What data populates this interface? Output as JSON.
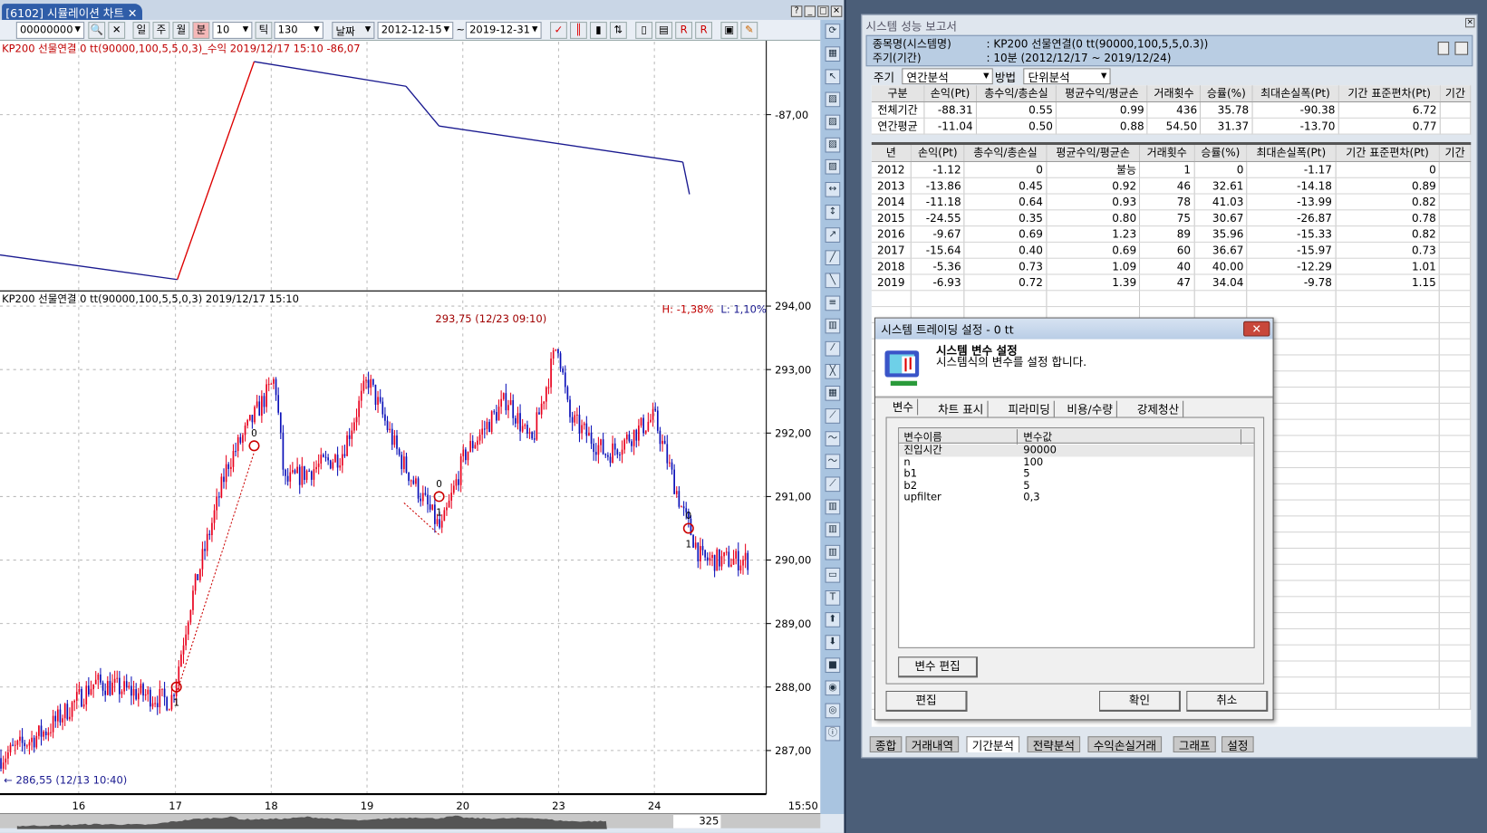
{
  "window": {
    "tab_title": "[6102] 시뮬레이션 차트",
    "close": "✕",
    "help": "?",
    "min": "_",
    "max": "□",
    "x": "✕"
  },
  "toolbar": {
    "code": "00000000",
    "day": "일",
    "week": "주",
    "month": "월",
    "minute": "분",
    "interval": "10",
    "tick": "틱",
    "tick_value": "130",
    "date_mode": "날짜",
    "from": "2012-12-15",
    "tilde": "~",
    "to": "2019-12-31"
  },
  "upper_chart": {
    "legend": "KP200 선물연결  0 tt(90000,100,5,5,0,3)_수익 2019/12/17 15:10 -86,07",
    "axis_label": "-87,00"
  },
  "lower_chart": {
    "legend": "KP200 선물연결  0 tt(90000,100,5,5,0,3)  2019/12/17 15:10",
    "hl_high": "H: -1,38%",
    "hl_low": "L: 1,10%",
    "max_note": "293,75 (12/23 09:10)",
    "min_note": "286,55 (12/13 10:40)",
    "yticks": [
      "294,00",
      "293,00",
      "292,00",
      "291,00",
      "290,00",
      "289,00",
      "288,00",
      "287,00"
    ],
    "xticks": [
      "16",
      "17",
      "18",
      "19",
      "20",
      "23",
      "24"
    ],
    "time_label": "15:50",
    "up_color": "#e8001c",
    "down_color": "#0a10b8",
    "signals": [
      {
        "top": "0",
        "bottom": ""
      },
      {
        "top": "0",
        "bottom": "1"
      },
      {
        "top": "0",
        "bottom": "1"
      },
      {
        "top": "",
        "bottom": "1"
      }
    ]
  },
  "scrollbar": {
    "count": "325"
  },
  "chart_data": {
    "type": "candlestick",
    "price_path": [
      [
        0,
        286.88
      ],
      [
        50,
        287.33
      ],
      [
        100,
        288.07
      ],
      [
        180,
        287.78
      ],
      [
        185,
        288.07
      ],
      [
        200,
        289.27
      ],
      [
        240,
        291.51
      ],
      [
        290,
        292.85
      ],
      [
        300,
        291.21
      ],
      [
        360,
        291.66
      ],
      [
        388,
        292.85
      ],
      [
        420,
        291.66
      ],
      [
        465,
        290.46
      ],
      [
        490,
        291.66
      ],
      [
        535,
        292.55
      ],
      [
        560,
        291.8
      ],
      [
        588,
        293.45
      ],
      [
        600,
        292.25
      ],
      [
        640,
        291.66
      ],
      [
        690,
        292.25
      ],
      [
        720,
        290.76
      ],
      [
        740,
        290.0
      ],
      [
        790,
        290.0
      ]
    ],
    "equity_path": [
      [
        0,
        -87.74
      ],
      [
        187,
        -87.87
      ],
      [
        268,
        -86.72
      ],
      [
        428,
        -86.85
      ],
      [
        463,
        -87.06
      ],
      [
        720,
        -87.25
      ],
      [
        727,
        -87.42
      ]
    ],
    "ylim": [
      286.6,
      294.2
    ]
  },
  "report": {
    "title": "시스템 성능 보고서",
    "name_label": "종목명(시스템명)",
    "name_value": ": KP200 선물연결(0 tt(90000,100,5,5,0.3))",
    "period_label": "주기(기간)",
    "period_value": ": 10분  (2012/12/17 ~ 2019/12/24)",
    "cycle_label": "주기",
    "cycle_value": "연간분석",
    "method_label": "방법",
    "method_value": "단위분석",
    "summary_headers": [
      "구분",
      "손익(Pt)",
      "총수익/총손실",
      "평균수익/평균손",
      "거래횟수",
      "승률(%)",
      "최대손실폭(Pt)",
      "기간 표준편차(Pt)",
      "기간"
    ],
    "summary_rows": [
      [
        "전체기간",
        "-88.31",
        "0.55",
        "0.99",
        "436",
        "35.78",
        "-90.38",
        "6.72",
        ""
      ],
      [
        "연간평균",
        "-11.04",
        "0.50",
        "0.88",
        "54.50",
        "31.37",
        "-13.70",
        "0.77",
        ""
      ]
    ],
    "year_headers": [
      "년",
      "손익(Pt)",
      "총수익/총손실",
      "평균수익/평균손",
      "거래횟수",
      "승률(%)",
      "최대손실폭(Pt)",
      "기간 표준편차(Pt)",
      "기간"
    ],
    "year_rows": [
      [
        "2012",
        "-1.12",
        "0",
        "불능",
        "1",
        "0",
        "-1.17",
        "0",
        ""
      ],
      [
        "2013",
        "-13.86",
        "0.45",
        "0.92",
        "46",
        "32.61",
        "-14.18",
        "0.89",
        ""
      ],
      [
        "2014",
        "-11.18",
        "0.64",
        "0.93",
        "78",
        "41.03",
        "-13.99",
        "0.82",
        ""
      ],
      [
        "2015",
        "-24.55",
        "0.35",
        "0.80",
        "75",
        "30.67",
        "-26.87",
        "0.78",
        ""
      ],
      [
        "2016",
        "-9.67",
        "0.69",
        "1.23",
        "89",
        "35.96",
        "-15.33",
        "0.82",
        ""
      ],
      [
        "2017",
        "-15.64",
        "0.40",
        "0.69",
        "60",
        "36.67",
        "-15.97",
        "0.73",
        ""
      ],
      [
        "2018",
        "-5.36",
        "0.73",
        "1.09",
        "40",
        "40.00",
        "-12.29",
        "1.01",
        ""
      ],
      [
        "2019",
        "-6.93",
        "0.72",
        "1.39",
        "47",
        "34.04",
        "-9.78",
        "1.15",
        ""
      ]
    ],
    "tabs": [
      "종합",
      "거래내역",
      "기간분석",
      "전략분석",
      "수익손실거래",
      "그래프",
      "설정"
    ],
    "active_tab": 2
  },
  "dialog": {
    "title": "시스템 트레이딩 설정 - 0 tt",
    "close": "✕",
    "heading": "시스템 변수 설정",
    "subheading": "시스템식의 변수를 설정 합니다.",
    "tabs": [
      "변수",
      "차트 표시",
      "피라미딩",
      "비용/수량",
      "강제청산"
    ],
    "col_name": "변수이름",
    "col_value": "변수값",
    "vars": [
      [
        "진입시간",
        "90000"
      ],
      [
        "n",
        "100"
      ],
      [
        "b1",
        "5"
      ],
      [
        "b2",
        "5"
      ],
      [
        "upfilter",
        "0,3"
      ]
    ],
    "edit_var": "변수 편집",
    "edit": "편집",
    "ok": "확인",
    "cancel": "취소"
  }
}
